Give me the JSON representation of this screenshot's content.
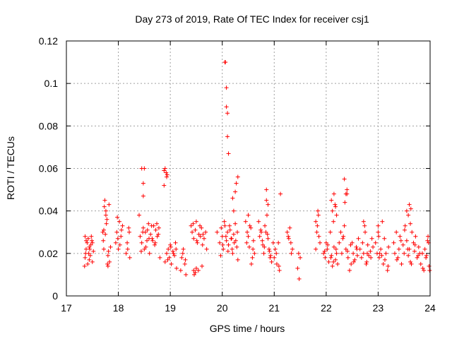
{
  "chart_data": {
    "type": "scatter",
    "title": "Day 273 of 2019, Rate Of TEC Index for receiver csj1",
    "xlabel": "GPS time / hours",
    "ylabel": "ROTI / TECUs",
    "xlim": [
      17,
      24
    ],
    "ylim": [
      0,
      0.12
    ],
    "xticks": [
      17,
      18,
      19,
      20,
      21,
      22,
      23,
      24
    ],
    "xtick_labels": [
      "17",
      "18",
      "19",
      "20",
      "21",
      "22",
      "23",
      "24"
    ],
    "yticks": [
      0,
      0.02,
      0.04,
      0.06,
      0.08,
      0.1,
      0.12
    ],
    "ytick_labels": [
      "0",
      "0.02",
      "0.04",
      "0.06",
      "0.08",
      "0.1",
      "0.12"
    ],
    "grid": true,
    "marker": "+",
    "color": "#ff0000",
    "series": [
      {
        "name": "ROTI",
        "x": [
          17.35,
          17.36,
          17.38,
          17.4,
          17.42,
          17.44,
          17.46,
          17.48,
          17.5,
          17.38,
          17.43,
          17.47,
          17.52,
          17.36,
          17.41,
          17.45,
          17.49,
          17.37,
          17.44,
          17.5,
          17.7,
          17.72,
          17.74,
          17.76,
          17.78,
          17.8,
          17.82,
          17.71,
          17.75,
          17.79,
          17.83,
          17.73,
          17.77,
          17.81,
          17.85,
          17.72,
          17.76,
          17.8,
          17.95,
          17.97,
          18.0,
          18.02,
          18.05,
          18.08,
          17.98,
          18.03,
          18.06,
          17.99,
          18.15,
          18.18,
          18.2,
          18.22,
          18.17,
          18.21,
          18.4,
          18.42,
          18.45,
          18.48,
          18.5,
          18.52,
          18.55,
          18.58,
          18.6,
          18.62,
          18.65,
          18.68,
          18.7,
          18.72,
          18.75,
          18.78,
          18.8,
          18.47,
          18.53,
          18.59,
          18.64,
          18.71,
          18.77,
          18.44,
          18.56,
          18.66,
          18.74,
          18.48,
          18.5,
          18.48,
          18.45,
          18.88,
          18.9,
          18.92,
          18.93,
          18.94,
          18.88,
          18.9,
          18.93,
          18.96,
          18.98,
          19.0,
          19.02,
          19.05,
          19.08,
          19.1,
          19.12,
          18.95,
          19.01,
          19.06,
          19.11,
          19.2,
          19.22,
          19.25,
          19.28,
          19.3,
          19.24,
          19.29,
          19.4,
          19.42,
          19.45,
          19.48,
          19.5,
          19.52,
          19.55,
          19.58,
          19.6,
          19.62,
          19.65,
          19.68,
          19.7,
          19.44,
          19.51,
          19.57,
          19.63,
          19.46,
          19.54,
          19.61,
          19.45,
          19.48,
          19.5,
          19.9,
          19.95,
          19.98,
          20.0,
          20.02,
          20.05,
          20.08,
          20.1,
          20.12,
          20.15,
          20.18,
          20.2,
          20.22,
          20.25,
          20.28,
          20.3,
          19.97,
          20.04,
          20.11,
          20.17,
          20.23,
          20.29,
          20.01,
          20.07,
          20.14,
          20.19,
          20.26,
          20.05,
          20.06,
          20.08,
          20.08,
          20.1,
          20.1,
          20.12,
          20.27,
          20.25,
          20.3,
          20.22,
          20.2,
          20.45,
          20.48,
          20.5,
          20.52,
          20.55,
          20.58,
          20.6,
          20.62,
          20.47,
          20.53,
          20.59,
          20.5,
          20.56,
          20.7,
          20.72,
          20.75,
          20.78,
          20.8,
          20.82,
          20.85,
          20.88,
          20.9,
          20.92,
          20.95,
          20.98,
          20.74,
          20.81,
          20.87,
          20.93,
          20.77,
          20.84,
          20.91,
          20.85,
          20.88,
          20.86,
          21.0,
          21.02,
          21.05,
          21.08,
          21.1,
          21.04,
          21.09,
          21.12,
          21.25,
          21.28,
          21.3,
          21.32,
          21.35,
          21.27,
          21.33,
          21.45,
          21.48,
          21.5,
          21.47,
          21.8,
          21.82,
          21.85,
          21.88,
          21.83,
          21.86,
          21.8,
          21.84,
          21.95,
          21.98,
          22.0,
          22.02,
          22.05,
          22.08,
          22.1,
          22.12,
          22.15,
          22.18,
          22.2,
          22.22,
          21.97,
          22.03,
          22.09,
          22.14,
          22.19,
          22.1,
          22.12,
          22.15,
          22.18,
          22.2,
          22.14,
          22.17,
          22.25,
          22.28,
          22.3,
          22.32,
          22.35,
          22.38,
          22.4,
          22.42,
          22.45,
          22.48,
          22.5,
          22.52,
          22.55,
          22.58,
          22.6,
          22.62,
          22.33,
          22.41,
          22.47,
          22.53,
          22.59,
          22.35,
          22.38,
          22.4,
          22.36,
          22.65,
          22.68,
          22.7,
          22.72,
          22.75,
          22.78,
          22.8,
          22.82,
          22.85,
          22.88,
          22.9,
          22.72,
          22.79,
          22.86,
          22.74,
          22.77,
          22.95,
          22.98,
          23.0,
          23.02,
          23.05,
          23.08,
          23.1,
          23.12,
          23.15,
          23.18,
          23.2,
          23.01,
          23.07,
          23.13,
          23.19,
          23.0,
          23.03,
          23.3,
          23.32,
          23.35,
          23.38,
          23.4,
          23.42,
          23.45,
          23.48,
          23.5,
          23.52,
          23.55,
          23.58,
          23.6,
          23.62,
          23.65,
          23.68,
          23.7,
          23.72,
          23.75,
          23.78,
          23.8,
          23.36,
          23.44,
          23.51,
          23.57,
          23.64,
          23.71,
          23.77,
          23.55,
          23.58,
          23.6,
          23.62,
          23.63,
          23.82,
          23.85,
          23.88,
          23.9,
          23.92,
          23.95,
          23.98,
          23.86,
          23.93,
          23.97,
          23.96,
          23.99
        ],
        "y": [
          0.014,
          0.018,
          0.022,
          0.025,
          0.027,
          0.023,
          0.019,
          0.028,
          0.016,
          0.026,
          0.02,
          0.024,
          0.021,
          0.028,
          0.015,
          0.022,
          0.026,
          0.02,
          0.017,
          0.025,
          0.03,
          0.022,
          0.045,
          0.04,
          0.036,
          0.019,
          0.043,
          0.026,
          0.029,
          0.015,
          0.016,
          0.042,
          0.034,
          0.021,
          0.023,
          0.031,
          0.038,
          0.014,
          0.025,
          0.03,
          0.022,
          0.035,
          0.028,
          0.033,
          0.037,
          0.024,
          0.031,
          0.027,
          0.02,
          0.022,
          0.032,
          0.018,
          0.025,
          0.03,
          0.038,
          0.028,
          0.025,
          0.032,
          0.022,
          0.03,
          0.026,
          0.034,
          0.02,
          0.029,
          0.027,
          0.033,
          0.024,
          0.031,
          0.028,
          0.032,
          0.018,
          0.03,
          0.023,
          0.027,
          0.033,
          0.025,
          0.029,
          0.021,
          0.031,
          0.026,
          0.034,
          0.053,
          0.06,
          0.047,
          0.06,
          0.052,
          0.06,
          0.058,
          0.056,
          0.057,
          0.059,
          0.016,
          0.02,
          0.022,
          0.018,
          0.024,
          0.015,
          0.021,
          0.019,
          0.025,
          0.013,
          0.017,
          0.023,
          0.02,
          0.022,
          0.012,
          0.018,
          0.022,
          0.015,
          0.01,
          0.02,
          0.017,
          0.033,
          0.03,
          0.027,
          0.031,
          0.035,
          0.025,
          0.029,
          0.028,
          0.032,
          0.024,
          0.027,
          0.03,
          0.022,
          0.034,
          0.026,
          0.033,
          0.029,
          0.01,
          0.012,
          0.014,
          0.012,
          0.011,
          0.013,
          0.03,
          0.025,
          0.032,
          0.028,
          0.022,
          0.033,
          0.026,
          0.03,
          0.024,
          0.031,
          0.027,
          0.02,
          0.029,
          0.034,
          0.023,
          0.017,
          0.019,
          0.035,
          0.021,
          0.027,
          0.025,
          0.03,
          0.024,
          0.028,
          0.033,
          0.022,
          0.026,
          0.11,
          0.11,
          0.098,
          0.089,
          0.086,
          0.075,
          0.067,
          0.053,
          0.049,
          0.056,
          0.04,
          0.046,
          0.035,
          0.03,
          0.028,
          0.023,
          0.032,
          0.018,
          0.026,
          0.02,
          0.025,
          0.033,
          0.022,
          0.038,
          0.015,
          0.035,
          0.028,
          0.03,
          0.024,
          0.02,
          0.033,
          0.045,
          0.027,
          0.022,
          0.018,
          0.016,
          0.025,
          0.031,
          0.023,
          0.029,
          0.019,
          0.026,
          0.03,
          0.021,
          0.05,
          0.043,
          0.038,
          0.018,
          0.022,
          0.015,
          0.025,
          0.012,
          0.02,
          0.014,
          0.048,
          0.03,
          0.027,
          0.032,
          0.025,
          0.022,
          0.028,
          0.02,
          0.013,
          0.008,
          0.018,
          0.02,
          0.035,
          0.03,
          0.038,
          0.025,
          0.033,
          0.028,
          0.022,
          0.04,
          0.02,
          0.018,
          0.025,
          0.022,
          0.016,
          0.03,
          0.019,
          0.014,
          0.023,
          0.017,
          0.02,
          0.015,
          0.021,
          0.024,
          0.018,
          0.016,
          0.022,
          0.045,
          0.04,
          0.048,
          0.042,
          0.038,
          0.035,
          0.043,
          0.025,
          0.03,
          0.02,
          0.027,
          0.033,
          0.022,
          0.048,
          0.018,
          0.012,
          0.015,
          0.025,
          0.02,
          0.017,
          0.023,
          0.019,
          0.027,
          0.028,
          0.021,
          0.024,
          0.016,
          0.022,
          0.055,
          0.048,
          0.05,
          0.044,
          0.022,
          0.018,
          0.025,
          0.02,
          0.03,
          0.016,
          0.024,
          0.019,
          0.021,
          0.027,
          0.023,
          0.035,
          0.02,
          0.018,
          0.033,
          0.015,
          0.025,
          0.02,
          0.03,
          0.018,
          0.022,
          0.035,
          0.015,
          0.027,
          0.02,
          0.012,
          0.023,
          0.028,
          0.019,
          0.017,
          0.014,
          0.033,
          0.02,
          0.025,
          0.02,
          0.03,
          0.018,
          0.022,
          0.028,
          0.015,
          0.024,
          0.02,
          0.033,
          0.026,
          0.019,
          0.022,
          0.016,
          0.03,
          0.025,
          0.021,
          0.028,
          0.018,
          0.023,
          0.02,
          0.017,
          0.026,
          0.031,
          0.022,
          0.015,
          0.024,
          0.019,
          0.04,
          0.038,
          0.043,
          0.034,
          0.041,
          0.015,
          0.02,
          0.012,
          0.022,
          0.018,
          0.026,
          0.014,
          0.013,
          0.019,
          0.025,
          0.028,
          0.012
        ]
      }
    ]
  }
}
